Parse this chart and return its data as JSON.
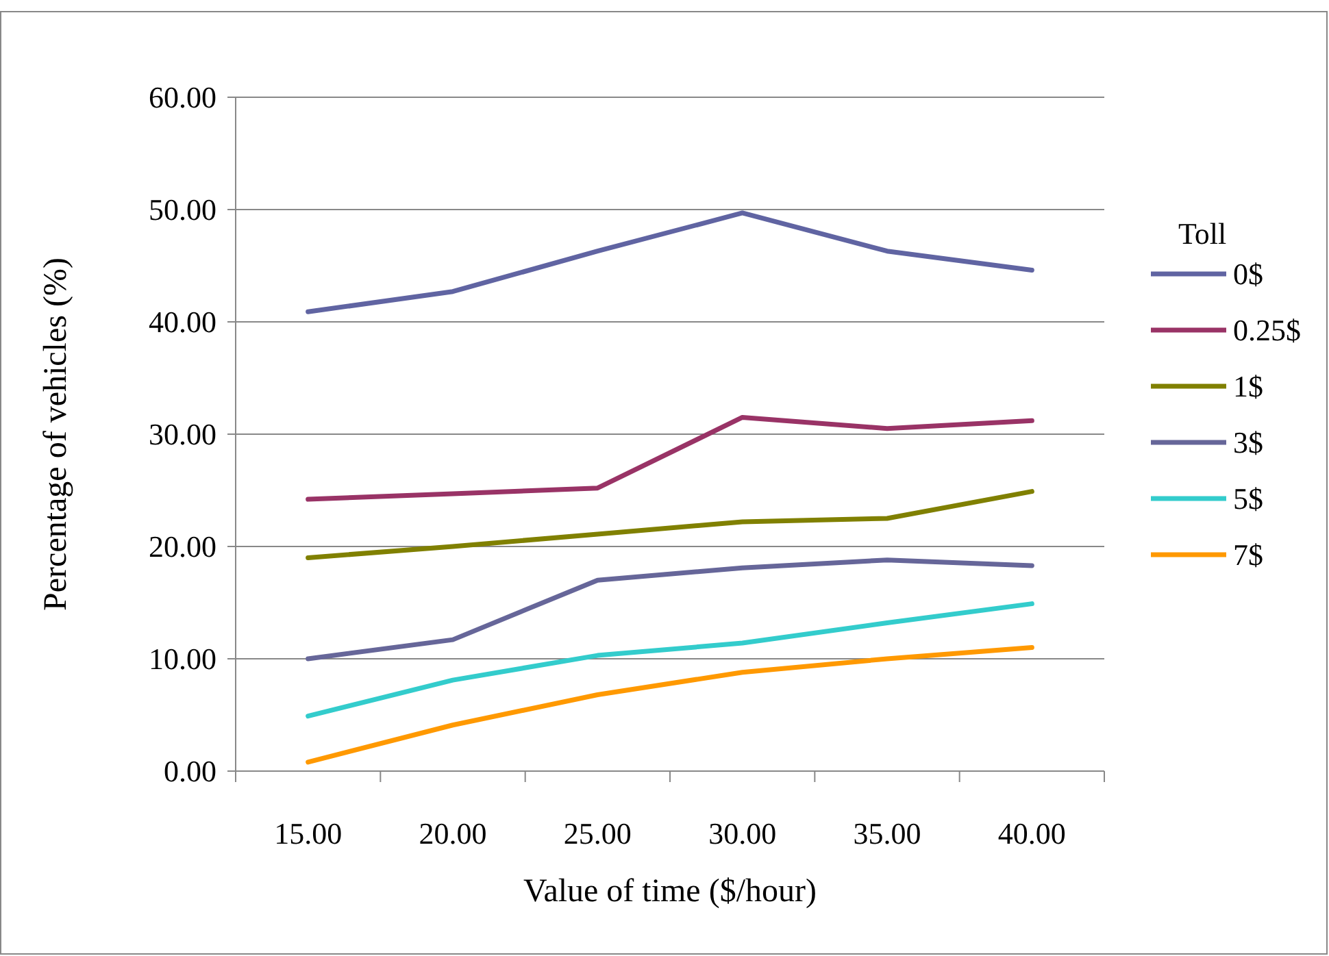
{
  "chart_data": {
    "type": "line",
    "xlabel": "Value of time ($/hour)",
    "ylabel": "Percentage of vehicles (%)",
    "legend_title": "Toll",
    "categories": [
      "15.00",
      "20.00",
      "25.00",
      "30.00",
      "35.00",
      "40.00"
    ],
    "series": [
      {
        "name": "0$",
        "color": "#6064a2",
        "values": [
          40.9,
          42.7,
          46.3,
          49.7,
          46.3,
          44.6
        ]
      },
      {
        "name": "0.25$",
        "color": "#993366",
        "values": [
          24.2,
          24.7,
          25.2,
          31.5,
          30.5,
          31.2
        ]
      },
      {
        "name": "1$",
        "color": "#808000",
        "values": [
          19.0,
          20.0,
          21.1,
          22.2,
          22.5,
          24.9
        ]
      },
      {
        "name": "3$",
        "color": "#666699",
        "values": [
          10.0,
          11.7,
          17.0,
          18.1,
          18.8,
          18.3
        ]
      },
      {
        "name": "5$",
        "color": "#33cccc",
        "values": [
          4.9,
          8.1,
          10.3,
          11.4,
          13.2,
          14.9
        ]
      },
      {
        "name": "7$",
        "color": "#ff9900",
        "values": [
          0.8,
          4.1,
          6.8,
          8.8,
          10.0,
          11.0
        ]
      }
    ],
    "ylim": [
      0,
      60
    ],
    "yticks": [
      {
        "value": 0,
        "label": "0.00"
      },
      {
        "value": 10,
        "label": "10.00"
      },
      {
        "value": 20,
        "label": "20.00"
      },
      {
        "value": 30,
        "label": "30.00"
      },
      {
        "value": 40,
        "label": "40.00"
      },
      {
        "value": 50,
        "label": "50.00"
      },
      {
        "value": 60,
        "label": "60.00"
      }
    ],
    "grid": "y",
    "legend": "right",
    "marker": "none",
    "line_style": "solid"
  }
}
